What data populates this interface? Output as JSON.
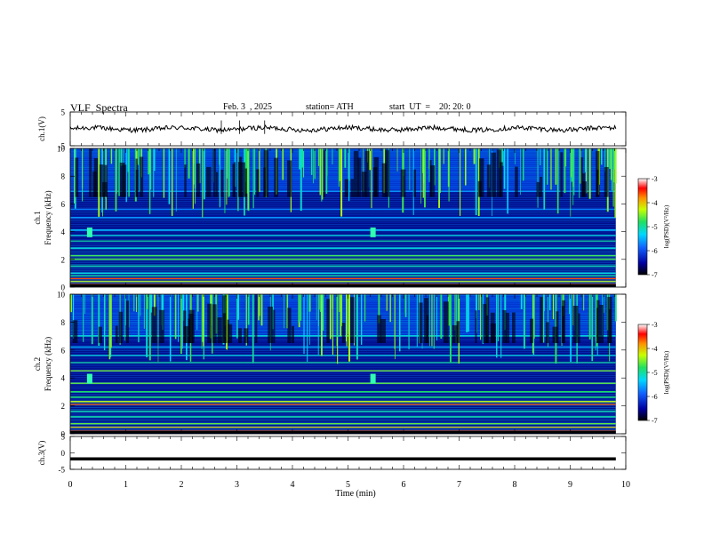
{
  "header": {
    "title": "VLF  Spectra",
    "date": "Feb. 3  , 2025",
    "station": "station= ATH",
    "start": "start  UT  =    20: 20: 0"
  },
  "chart_data": [
    {
      "type": "line",
      "name": "ch1-voltage",
      "ylabel": "ch.1(V)",
      "ylim": [
        -5,
        5
      ],
      "yticks": [
        "5",
        "-5"
      ],
      "xlim": [
        0,
        10
      ],
      "x_extent": [
        0,
        9.82
      ],
      "approx_level": 0
    },
    {
      "type": "heatmap",
      "name": "ch1-spectrogram",
      "ylabel_line1": "ch.1",
      "ylabel_line2": "Frequency  (kHz)",
      "ylim": [
        0,
        10
      ],
      "yticks": [
        "0",
        "2",
        "4",
        "6",
        "8",
        "10"
      ],
      "xlim": [
        0,
        10
      ],
      "x_extent": [
        0,
        9.82
      ],
      "colorbar": {
        "label": "log(PSD)(V²/Hz)",
        "range": [
          -7,
          -3
        ],
        "ticks": [
          "-3",
          "-4",
          "-5",
          "-6",
          "-7"
        ]
      },
      "bursts_min": [
        0.35,
        5.45
      ]
    },
    {
      "type": "heatmap",
      "name": "ch2-spectrogram",
      "ylabel_line1": "ch.2",
      "ylabel_line2": "Frequency  (kHz)",
      "ylim": [
        0,
        10
      ],
      "yticks": [
        "0",
        "2",
        "4",
        "6",
        "8",
        "10"
      ],
      "xlim": [
        0,
        10
      ],
      "x_extent": [
        0,
        9.82
      ],
      "colorbar": {
        "label": "log(PSD)(V²/Hz)",
        "range": [
          -7,
          -3
        ],
        "ticks": [
          "-3",
          "-4",
          "-5",
          "-6",
          "-7"
        ]
      },
      "bursts_min": [
        0.35,
        5.45
      ]
    },
    {
      "type": "line",
      "name": "ch3-voltage",
      "ylabel": "ch.3(V)",
      "ylim": [
        -5,
        5
      ],
      "yticks": [
        "5",
        "0",
        "-5"
      ],
      "xlim": [
        0,
        10
      ],
      "x_extent": [
        0,
        9.82
      ],
      "approx_level": -1.8
    }
  ],
  "xaxis": {
    "label": "Time  (min)",
    "ticks": [
      "0",
      "1",
      "2",
      "3",
      "4",
      "5",
      "6",
      "7",
      "8",
      "9",
      "10"
    ]
  }
}
